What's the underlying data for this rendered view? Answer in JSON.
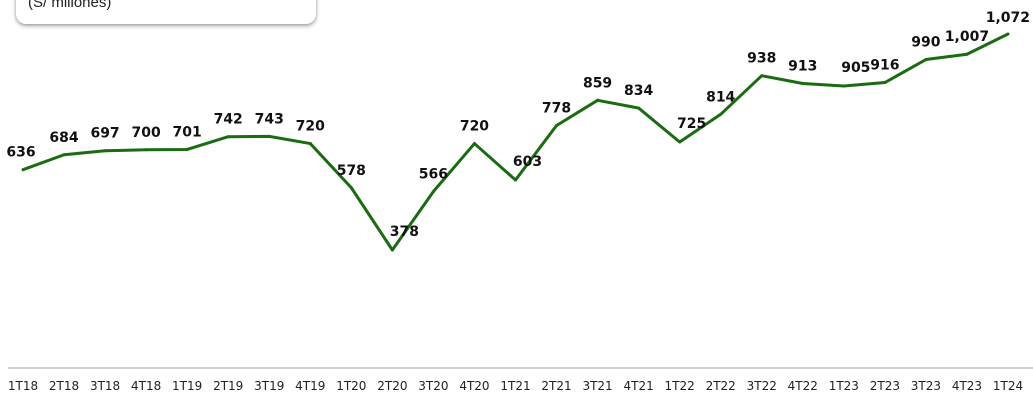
{
  "chart_data": {
    "type": "line",
    "unit_note": "(S/ millones)",
    "categories": [
      "1T18",
      "2T18",
      "3T18",
      "4T18",
      "1T19",
      "2T19",
      "3T19",
      "4T19",
      "1T20",
      "2T20",
      "3T20",
      "4T20",
      "1T21",
      "2T21",
      "3T21",
      "4T21",
      "1T22",
      "2T22",
      "3T22",
      "4T22",
      "1T23",
      "2T23",
      "3T23",
      "4T23",
      "1T24"
    ],
    "data_labels": [
      "636",
      "684",
      "697",
      "700",
      "701",
      "742",
      "743",
      "720",
      "578",
      "378",
      "566",
      "720",
      "603",
      "778",
      "859",
      "834",
      "725",
      "814",
      "938",
      "913",
      "905",
      "916",
      "990",
      "1,007",
      "1,072"
    ],
    "series": [
      {
        "values": [
          636,
          684,
          697,
          700,
          701,
          742,
          743,
          720,
          578,
          378,
          566,
          720,
          603,
          778,
          859,
          834,
          725,
          814,
          938,
          913,
          905,
          916,
          990,
          1007,
          1072
        ],
        "color": "#1b6b12"
      }
    ],
    "grid": false,
    "legend": "none"
  }
}
